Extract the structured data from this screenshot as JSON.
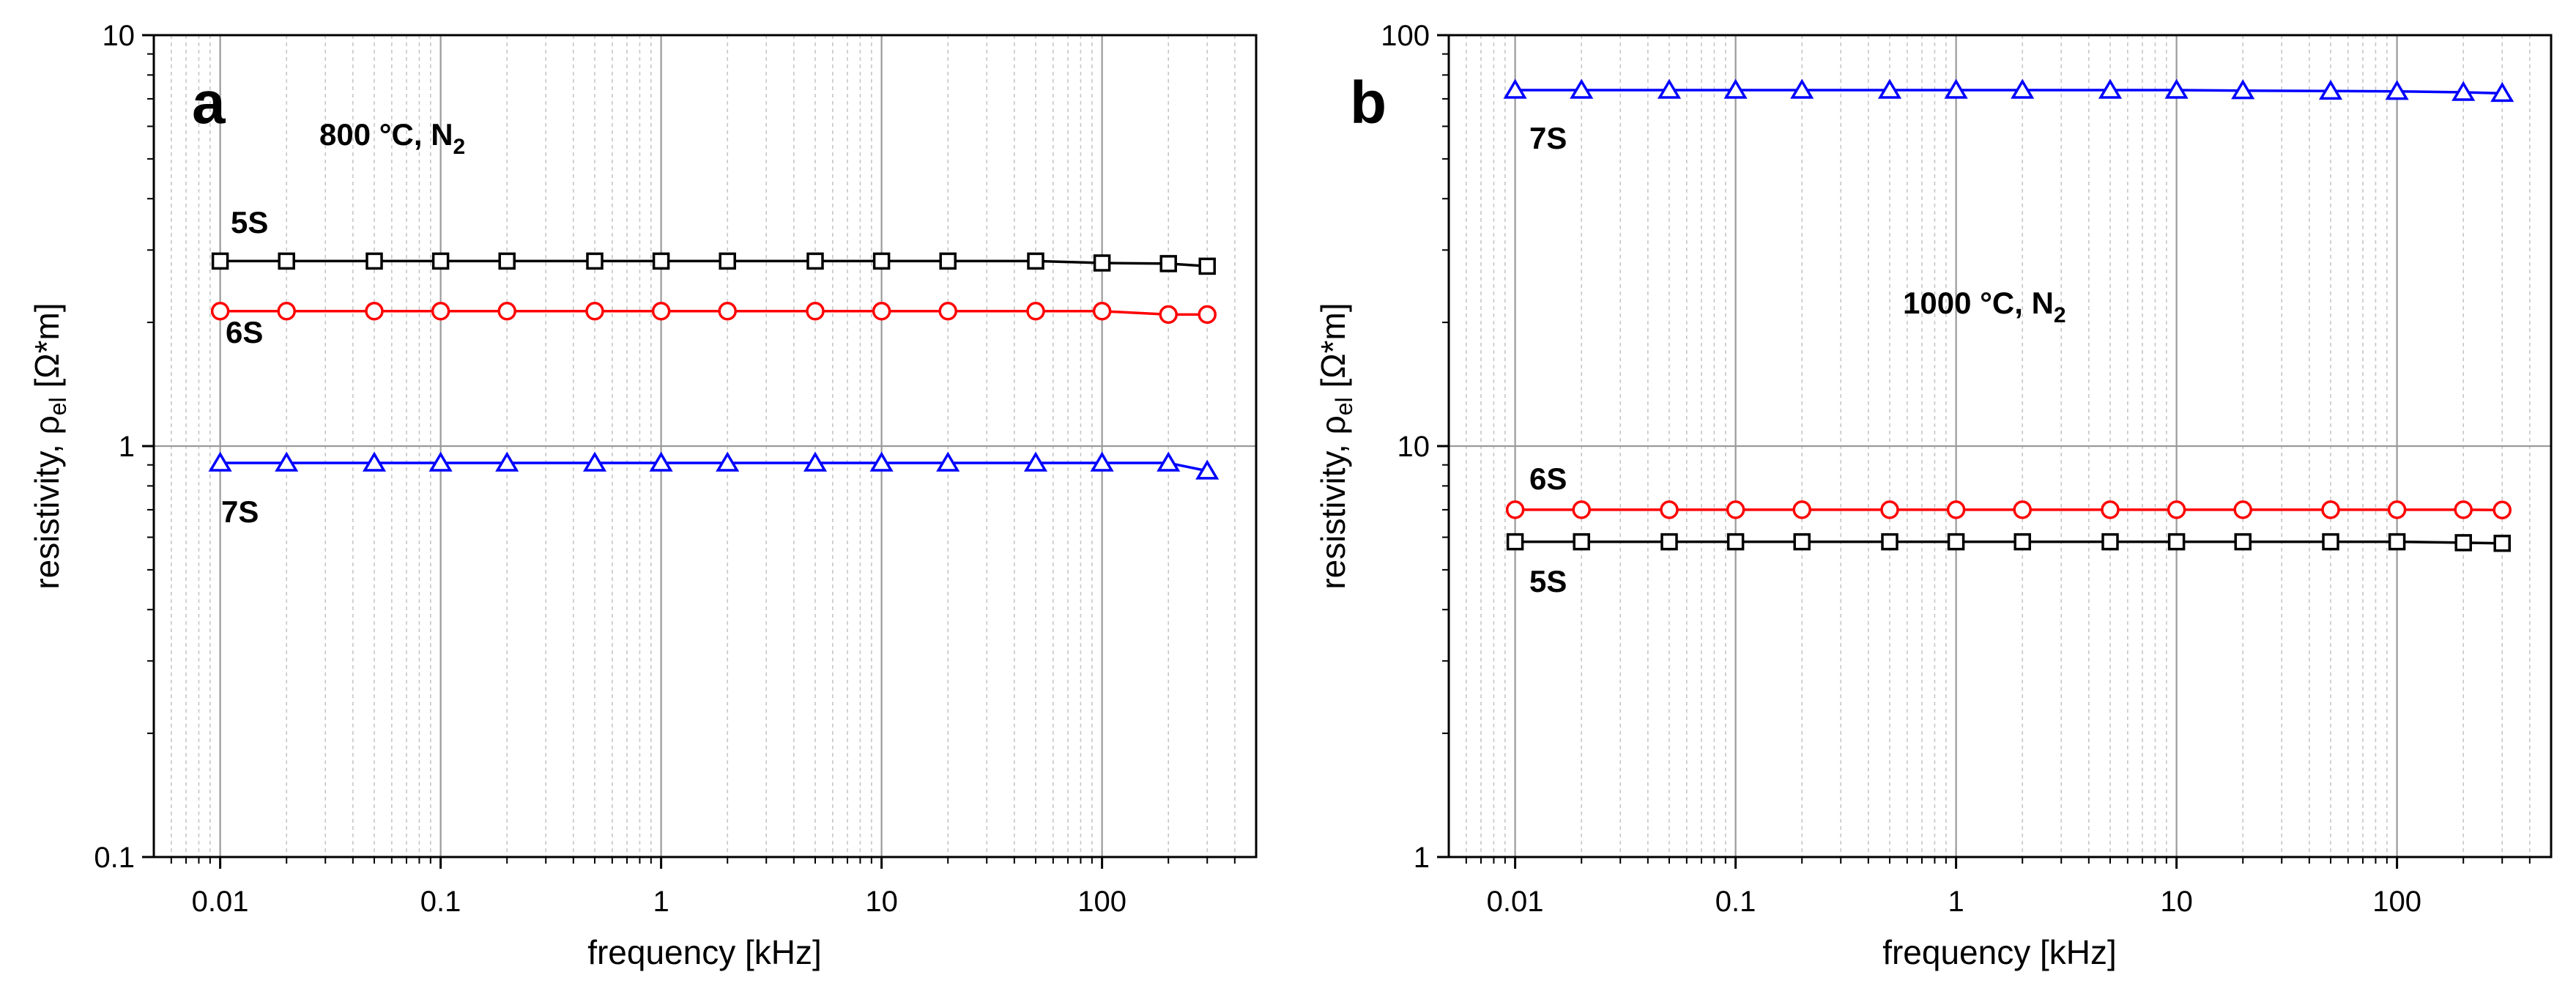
{
  "chart_data": [
    {
      "panel": "a",
      "type": "line",
      "xscale": "log",
      "yscale": "log",
      "xlabel": "frequency [kHz]",
      "ylabel": "resistivity, ρel [Ω*m]",
      "ylabel_parts": {
        "pre": "resistivity, ",
        "sym": "ρ",
        "sub": "el",
        "post": " [Ω*m]"
      },
      "xlim": [
        0.005,
        500
      ],
      "ylim": [
        0.1,
        10
      ],
      "xticks": [
        0.01,
        0.1,
        1,
        10,
        100
      ],
      "xtick_labels": [
        "0.01",
        "0.1",
        "1",
        "10",
        "100"
      ],
      "yticks": [
        0.1,
        1,
        10
      ],
      "ytick_labels": [
        "0.1",
        "1",
        "10"
      ],
      "annotation": {
        "text": "800 °C, N",
        "sub": "2"
      },
      "x": [
        0.01,
        0.02,
        0.05,
        0.1,
        0.2,
        0.5,
        1,
        2,
        5,
        10,
        20,
        50,
        100,
        200,
        300
      ],
      "series": [
        {
          "name": "5S",
          "color": "#000000",
          "marker": "square",
          "values": [
            2.82,
            2.82,
            2.82,
            2.82,
            2.82,
            2.82,
            2.82,
            2.82,
            2.82,
            2.82,
            2.82,
            2.82,
            2.79,
            2.78,
            2.74
          ]
        },
        {
          "name": "6S",
          "color": "#ff0000",
          "marker": "circle",
          "values": [
            2.13,
            2.13,
            2.13,
            2.13,
            2.13,
            2.13,
            2.13,
            2.13,
            2.13,
            2.13,
            2.13,
            2.13,
            2.13,
            2.09,
            2.09
          ]
        },
        {
          "name": "7S",
          "color": "#0000ff",
          "marker": "triangle",
          "values": [
            0.91,
            0.91,
            0.91,
            0.91,
            0.91,
            0.91,
            0.91,
            0.91,
            0.91,
            0.91,
            0.91,
            0.91,
            0.91,
            0.91,
            0.87
          ]
        }
      ]
    },
    {
      "panel": "b",
      "type": "line",
      "xscale": "log",
      "yscale": "log",
      "xlabel": "frequency [kHz]",
      "ylabel": "resistivity, ρel [Ω*m]",
      "ylabel_parts": {
        "pre": "resistivity, ",
        "sym": "ρ",
        "sub": "el",
        "post": " [Ω*m]"
      },
      "xlim": [
        0.005,
        500
      ],
      "ylim": [
        1,
        100
      ],
      "xticks": [
        0.01,
        0.1,
        1,
        10,
        100
      ],
      "xtick_labels": [
        "0.01",
        "0.1",
        "1",
        "10",
        "100"
      ],
      "yticks": [
        1,
        10,
        100
      ],
      "ytick_labels": [
        "1",
        "10",
        "100"
      ],
      "annotation": {
        "text": "1000 °C, N",
        "sub": "2"
      },
      "x": [
        0.01,
        0.02,
        0.05,
        0.1,
        0.2,
        0.5,
        1,
        2,
        5,
        10,
        20,
        50,
        100,
        200,
        300
      ],
      "series": [
        {
          "name": "7S",
          "color": "#0000ff",
          "marker": "triangle",
          "values": [
            73.5,
            73.5,
            73.5,
            73.5,
            73.5,
            73.5,
            73.5,
            73.5,
            73.5,
            73.5,
            73.3,
            73.1,
            73.0,
            72.6,
            72.2
          ]
        },
        {
          "name": "6S",
          "color": "#ff0000",
          "marker": "circle",
          "values": [
            7.0,
            7.0,
            7.0,
            7.0,
            7.0,
            7.0,
            7.0,
            7.0,
            7.0,
            7.0,
            7.0,
            7.0,
            7.0,
            7.0,
            6.99
          ]
        },
        {
          "name": "5S",
          "color": "#000000",
          "marker": "square",
          "values": [
            5.85,
            5.85,
            5.85,
            5.85,
            5.85,
            5.85,
            5.85,
            5.85,
            5.85,
            5.85,
            5.85,
            5.85,
            5.85,
            5.82,
            5.8
          ]
        }
      ]
    }
  ]
}
